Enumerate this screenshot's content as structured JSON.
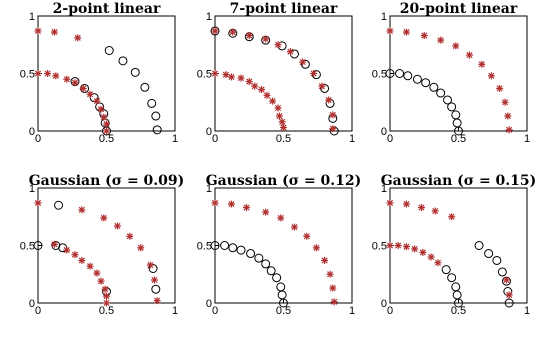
{
  "colors": {
    "star": "#b03030",
    "circle": "#000000",
    "axes": "#000000"
  },
  "panels": [
    {
      "title": "2-point linear",
      "stars": [
        [
          0,
          0.87
        ],
        [
          0.12,
          0.86
        ],
        [
          0.29,
          0.81
        ],
        [
          0,
          0.5
        ],
        [
          0.07,
          0.5
        ],
        [
          0.13,
          0.48
        ],
        [
          0.21,
          0.45
        ],
        [
          0.27,
          0.42
        ],
        [
          0.33,
          0.37
        ],
        [
          0.38,
          0.32
        ],
        [
          0.43,
          0.26
        ],
        [
          0.46,
          0.19
        ],
        [
          0.48,
          0.12
        ],
        [
          0.5,
          0.06
        ],
        [
          0.5,
          0
        ]
      ],
      "circles": [
        [
          0.5,
          0
        ],
        [
          0.49,
          0.07
        ],
        [
          0.48,
          0.15
        ],
        [
          0.45,
          0.21
        ],
        [
          0.41,
          0.29
        ],
        [
          0.34,
          0.37
        ],
        [
          0.27,
          0.43
        ],
        [
          0.52,
          0.7
        ],
        [
          0.62,
          0.61
        ],
        [
          0.71,
          0.51
        ],
        [
          0.78,
          0.38
        ],
        [
          0.83,
          0.24
        ],
        [
          0.86,
          0.13
        ],
        [
          0.87,
          0.01
        ]
      ]
    },
    {
      "title": "7-point linear",
      "stars": [
        [
          0,
          0.5
        ],
        [
          0.08,
          0.49
        ],
        [
          0.12,
          0.47
        ],
        [
          0.19,
          0.46
        ],
        [
          0.25,
          0.43
        ],
        [
          0.29,
          0.39
        ],
        [
          0.34,
          0.36
        ],
        [
          0.38,
          0.31
        ],
        [
          0.42,
          0.26
        ],
        [
          0.46,
          0.2
        ],
        [
          0.47,
          0.13
        ],
        [
          0.49,
          0.08
        ],
        [
          0.5,
          0.03
        ],
        [
          0.86,
          0.02
        ],
        [
          0.86,
          0.14
        ],
        [
          0.83,
          0.27
        ],
        [
          0.78,
          0.39
        ],
        [
          0.72,
          0.5
        ],
        [
          0.64,
          0.6
        ],
        [
          0.55,
          0.69
        ],
        [
          0.46,
          0.75
        ],
        [
          0.37,
          0.8
        ],
        [
          0.25,
          0.83
        ],
        [
          0.13,
          0.86
        ],
        [
          0,
          0.87
        ]
      ],
      "circles": [
        [
          0,
          0.87
        ],
        [
          0.13,
          0.85
        ],
        [
          0.25,
          0.82
        ],
        [
          0.37,
          0.79
        ],
        [
          0.49,
          0.74
        ],
        [
          0.58,
          0.67
        ],
        [
          0.66,
          0.58
        ],
        [
          0.74,
          0.49
        ],
        [
          0.8,
          0.37
        ],
        [
          0.84,
          0.24
        ],
        [
          0.86,
          0.11
        ],
        [
          0.87,
          0.0
        ]
      ]
    },
    {
      "title": "20-point linear",
      "stars": [
        [
          0,
          0.87
        ],
        [
          0.12,
          0.86
        ],
        [
          0.25,
          0.83
        ],
        [
          0.37,
          0.79
        ],
        [
          0.48,
          0.74
        ],
        [
          0.58,
          0.66
        ],
        [
          0.67,
          0.58
        ],
        [
          0.74,
          0.48
        ],
        [
          0.8,
          0.37
        ],
        [
          0.84,
          0.25
        ],
        [
          0.86,
          0.13
        ],
        [
          0.87,
          0.01
        ]
      ],
      "circles": [
        [
          0,
          0.5
        ],
        [
          0.07,
          0.5
        ],
        [
          0.13,
          0.48
        ],
        [
          0.2,
          0.45
        ],
        [
          0.26,
          0.42
        ],
        [
          0.32,
          0.38
        ],
        [
          0.37,
          0.33
        ],
        [
          0.42,
          0.27
        ],
        [
          0.45,
          0.21
        ],
        [
          0.48,
          0.14
        ],
        [
          0.49,
          0.07
        ],
        [
          0.5,
          0
        ]
      ]
    },
    {
      "title": "Gaussian (σ = 0.09)",
      "stars": [
        [
          0,
          0.87
        ],
        [
          0.12,
          0.51
        ],
        [
          0.21,
          0.46
        ],
        [
          0.27,
          0.42
        ],
        [
          0.32,
          0.37
        ],
        [
          0.38,
          0.32
        ],
        [
          0.43,
          0.26
        ],
        [
          0.46,
          0.19
        ],
        [
          0.49,
          0.12
        ],
        [
          0.5,
          0.06
        ],
        [
          0.5,
          0
        ],
        [
          0.32,
          0.81
        ],
        [
          0.48,
          0.74
        ],
        [
          0.58,
          0.67
        ],
        [
          0.67,
          0.58
        ],
        [
          0.75,
          0.48
        ],
        [
          0.82,
          0.33
        ],
        [
          0.85,
          0.2
        ],
        [
          0.87,
          0.02
        ]
      ],
      "circles": [
        [
          0,
          0.5
        ],
        [
          0.13,
          0.5
        ],
        [
          0.18,
          0.48
        ],
        [
          0.5,
          0.1
        ],
        [
          0.15,
          0.85
        ],
        [
          0.86,
          0.12
        ],
        [
          0.84,
          0.3
        ]
      ]
    },
    {
      "title": "Gaussian (σ = 0.12)",
      "stars": [
        [
          0,
          0.87
        ],
        [
          0.12,
          0.86
        ],
        [
          0.23,
          0.83
        ],
        [
          0.37,
          0.79
        ],
        [
          0.48,
          0.74
        ],
        [
          0.58,
          0.66
        ],
        [
          0.67,
          0.58
        ],
        [
          0.74,
          0.48
        ],
        [
          0.8,
          0.37
        ],
        [
          0.84,
          0.25
        ],
        [
          0.86,
          0.13
        ],
        [
          0.87,
          0.01
        ]
      ],
      "circles": [
        [
          0,
          0.5
        ],
        [
          0.07,
          0.5
        ],
        [
          0.13,
          0.48
        ],
        [
          0.19,
          0.46
        ],
        [
          0.26,
          0.43
        ],
        [
          0.32,
          0.39
        ],
        [
          0.37,
          0.34
        ],
        [
          0.41,
          0.28
        ],
        [
          0.45,
          0.22
        ],
        [
          0.48,
          0.14
        ],
        [
          0.49,
          0.07
        ],
        [
          0.5,
          0
        ]
      ]
    },
    {
      "title": "Gaussian (σ = 0.15)",
      "stars": [
        [
          0,
          0.87
        ],
        [
          0.12,
          0.86
        ],
        [
          0.23,
          0.83
        ],
        [
          0.33,
          0.8
        ],
        [
          0.45,
          0.75
        ],
        [
          0,
          0.5
        ],
        [
          0.06,
          0.5
        ],
        [
          0.12,
          0.49
        ],
        [
          0.18,
          0.47
        ],
        [
          0.24,
          0.44
        ],
        [
          0.3,
          0.4
        ],
        [
          0.35,
          0.35
        ],
        [
          0.85,
          0.2
        ],
        [
          0.87,
          0.07
        ]
      ],
      "circles": [
        [
          0.41,
          0.29
        ],
        [
          0.45,
          0.22
        ],
        [
          0.48,
          0.14
        ],
        [
          0.49,
          0.07
        ],
        [
          0.5,
          0
        ],
        [
          0.65,
          0.5
        ],
        [
          0.72,
          0.43
        ],
        [
          0.78,
          0.37
        ],
        [
          0.82,
          0.27
        ],
        [
          0.85,
          0.19
        ],
        [
          0.86,
          0.1
        ],
        [
          0.87,
          0.0
        ]
      ]
    }
  ],
  "chart_data": [
    {
      "type": "scatter",
      "title": "2-point linear",
      "xlim": [
        0,
        1
      ],
      "ylim": [
        0,
        1
      ]
    },
    {
      "type": "scatter",
      "title": "7-point linear",
      "xlim": [
        0,
        1
      ],
      "ylim": [
        0,
        1
      ]
    },
    {
      "type": "scatter",
      "title": "20-point linear",
      "xlim": [
        0,
        1
      ],
      "ylim": [
        0,
        1
      ]
    },
    {
      "type": "scatter",
      "title": "Gaussian (σ = 0.09)",
      "xlim": [
        0,
        1
      ],
      "ylim": [
        0,
        1
      ]
    },
    {
      "type": "scatter",
      "title": "Gaussian (σ = 0.12)",
      "xlim": [
        0,
        1
      ],
      "ylim": [
        0,
        1
      ]
    },
    {
      "type": "scatter",
      "title": "Gaussian (σ = 0.15)",
      "xlim": [
        0,
        1
      ],
      "ylim": [
        0,
        1
      ]
    }
  ],
  "ticks": {
    "x": [
      {
        "value": 0,
        "label": "0"
      },
      {
        "value": 0.5,
        "label": "0.5"
      },
      {
        "value": 1,
        "label": "1"
      }
    ],
    "y": [
      {
        "value": 0,
        "label": "0"
      },
      {
        "value": 0.5,
        "label": "0.5"
      },
      {
        "value": 1,
        "label": "1"
      }
    ]
  }
}
